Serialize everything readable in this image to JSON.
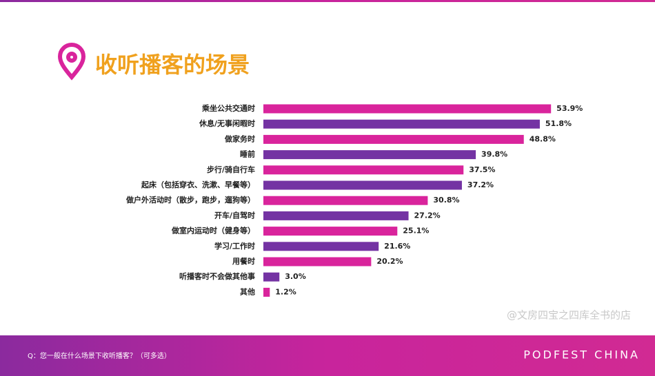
{
  "title": "收听播客的场景",
  "question": "Q：您一般在什么场景下收听播客？（可多选）",
  "brand": "PODFEST CHINA",
  "watermark": "@文房四宝之四库全书的店",
  "chart_data": {
    "type": "bar",
    "orientation": "horizontal",
    "categories": [
      "乘坐公共交通时",
      "休息/无事闲暇时",
      "做家务时",
      "睡前",
      "步行/骑自行车",
      "起床（包括穿衣、洗漱、早餐等）",
      "做户外活动时（散步，跑步，遛狗等）",
      "开车/自驾时",
      "做室内运动时（健身等）",
      "学习/工作时",
      "用餐时",
      "听播客时不会做其他事",
      "其他"
    ],
    "values": [
      53.9,
      51.8,
      48.8,
      39.8,
      37.5,
      37.2,
      30.8,
      27.2,
      25.1,
      21.6,
      20.2,
      3.0,
      1.2
    ],
    "value_labels": [
      "53.9%",
      "51.8%",
      "48.8%",
      "39.8%",
      "37.5%",
      "37.2%",
      "30.8%",
      "27.2%",
      "25.1%",
      "21.6%",
      "20.2%",
      "3.0%",
      "1.2%"
    ],
    "colors": [
      "#d9249c",
      "#7433a3",
      "#d9249c",
      "#7433a3",
      "#d9249c",
      "#7433a3",
      "#d9249c",
      "#7433a3",
      "#d9249c",
      "#7433a3",
      "#d9249c",
      "#7433a3",
      "#d9249c"
    ]
  }
}
